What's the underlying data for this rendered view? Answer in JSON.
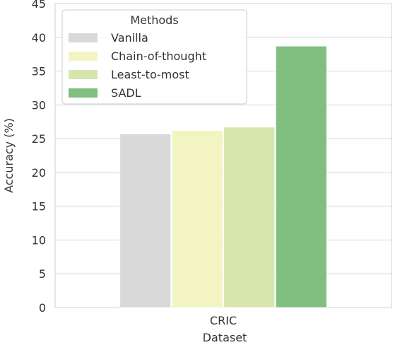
{
  "chart_data": {
    "type": "bar",
    "title": "",
    "xlabel": "Dataset",
    "ylabel": "Accuracy (%)",
    "categories": [
      "CRIC"
    ],
    "ylim": [
      0,
      45
    ],
    "yticks": [
      0,
      5,
      10,
      15,
      20,
      25,
      30,
      35,
      40,
      45
    ],
    "grid": true,
    "legend": {
      "title": "Methods",
      "position": "top-left"
    },
    "series": [
      {
        "name": "Vanilla",
        "values": [
          25.7
        ],
        "color": "#d9d9d9"
      },
      {
        "name": "Chain-of-thought",
        "values": [
          26.2
        ],
        "color": "#f2f5c2"
      },
      {
        "name": "Least-to-most",
        "values": [
          26.7
        ],
        "color": "#d6e6ad"
      },
      {
        "name": "SADL",
        "values": [
          38.7
        ],
        "color": "#80bf7f"
      }
    ]
  }
}
